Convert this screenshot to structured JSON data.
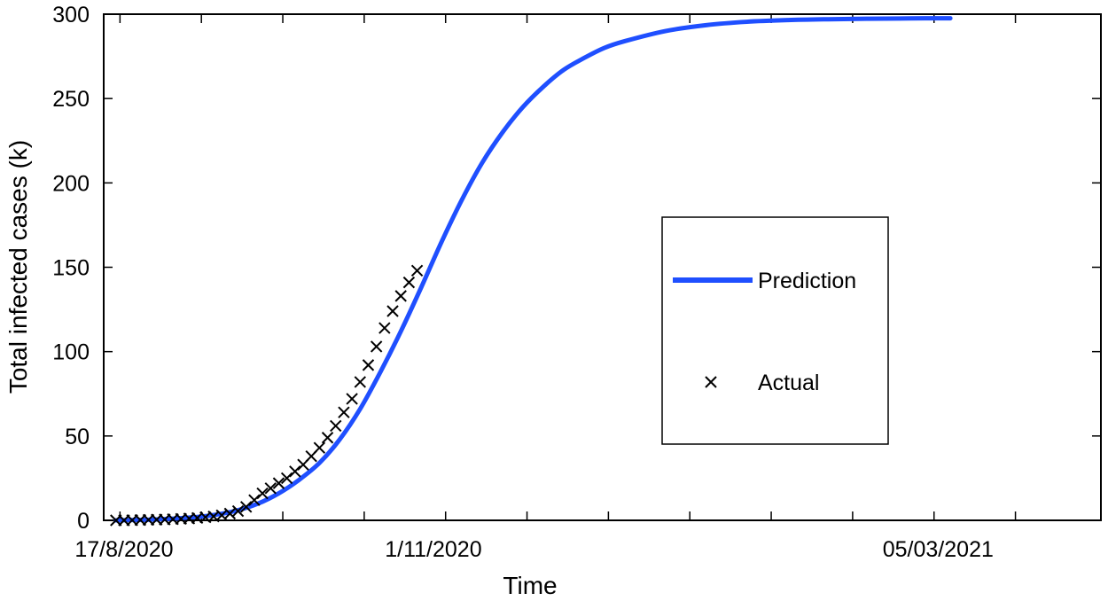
{
  "chart_data": {
    "type": "line",
    "title": "",
    "xlabel": "Time",
    "ylabel": "Total infected cases (k)",
    "x_unit": "date",
    "xlim": [
      "2020-08-12",
      "2021-04-14"
    ],
    "ylim": [
      0,
      300
    ],
    "x_ticks": [
      "2020-08-16",
      "2020-09-05",
      "2020-09-25",
      "2020-10-15",
      "2020-11-04",
      "2020-11-24",
      "2020-12-14",
      "2021-01-03",
      "2021-01-23",
      "2021-02-12",
      "2021-03-04",
      "2021-03-24"
    ],
    "x_tick_labels": [
      {
        "date": "2020-08-17",
        "label": "17/8/2020"
      },
      {
        "date": "2020-11-01",
        "label": "1/11/2020"
      },
      {
        "date": "2021-03-05",
        "label": "05/03/2021"
      }
    ],
    "y_ticks": [
      0,
      50,
      100,
      150,
      200,
      250,
      300
    ],
    "grid": false,
    "legend": {
      "position": "center-right",
      "entries": [
        "Prediction",
        "Actual"
      ]
    },
    "series": [
      {
        "name": "Prediction",
        "kind": "line",
        "color": "#1f4fff",
        "x": [
          "2020-08-15",
          "2020-08-25",
          "2020-09-04",
          "2020-09-09",
          "2020-09-14",
          "2020-09-19",
          "2020-09-24",
          "2020-09-29",
          "2020-10-04",
          "2020-10-09",
          "2020-10-14",
          "2020-10-19",
          "2020-10-24",
          "2020-10-29",
          "2020-11-03",
          "2020-11-08",
          "2020-11-13",
          "2020-11-18",
          "2020-11-23",
          "2020-11-28",
          "2020-12-03",
          "2020-12-08",
          "2020-12-13",
          "2020-12-18",
          "2020-12-28",
          "2021-01-07",
          "2021-01-17",
          "2021-01-27",
          "2021-02-06",
          "2021-02-16",
          "2021-02-26",
          "2021-03-08"
        ],
        "y": [
          0,
          0.5,
          2,
          3.5,
          6,
          10,
          16,
          24,
          34,
          48,
          66,
          88,
          112,
          138,
          165,
          190,
          212,
          230,
          245,
          257,
          267,
          274,
          280,
          284,
          290,
          293.5,
          295.5,
          296.5,
          297,
          297.3,
          297.5,
          297.6
        ]
      },
      {
        "name": "Actual",
        "kind": "scatter",
        "marker": "x",
        "color": "#000000",
        "x": [
          "2020-08-15",
          "2020-08-17",
          "2020-08-19",
          "2020-08-21",
          "2020-08-23",
          "2020-08-25",
          "2020-08-27",
          "2020-08-29",
          "2020-08-31",
          "2020-09-02",
          "2020-09-04",
          "2020-09-06",
          "2020-09-08",
          "2020-09-10",
          "2020-09-12",
          "2020-09-14",
          "2020-09-16",
          "2020-09-18",
          "2020-09-20",
          "2020-09-22",
          "2020-09-24",
          "2020-09-26",
          "2020-09-28",
          "2020-09-30",
          "2020-10-02",
          "2020-10-04",
          "2020-10-06",
          "2020-10-08",
          "2020-10-10",
          "2020-10-12",
          "2020-10-14",
          "2020-10-16",
          "2020-10-18",
          "2020-10-20",
          "2020-10-22",
          "2020-10-24",
          "2020-10-26",
          "2020-10-28"
        ],
        "y": [
          0,
          0,
          0.1,
          0.2,
          0.3,
          0.4,
          0.5,
          0.7,
          0.9,
          1.1,
          1.4,
          1.8,
          2.3,
          3,
          4,
          5.5,
          8,
          12,
          16,
          19,
          22,
          25,
          29,
          33,
          38,
          43,
          49,
          56,
          64,
          72,
          82,
          92,
          103,
          114,
          124,
          133,
          141,
          148
        ]
      }
    ]
  }
}
